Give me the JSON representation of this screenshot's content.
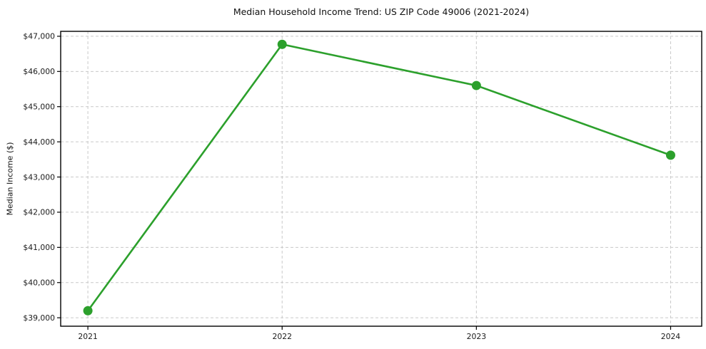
{
  "chart_data": {
    "type": "line",
    "title": "Median Household Income Trend: US ZIP Code 49006 (2021-2024)",
    "xlabel": "",
    "ylabel": "Median Income ($)",
    "x": [
      2021,
      2022,
      2023,
      2024
    ],
    "x_tick_labels": [
      "2021",
      "2022",
      "2023",
      "2024"
    ],
    "series": [
      {
        "name": "Median Household Income",
        "values": [
          39200,
          46770,
          45600,
          43620
        ],
        "color": "#2ca02c",
        "marker": "circle",
        "line_width": 2.6,
        "marker_radius": 6.5
      }
    ],
    "y_ticks": [
      39000,
      40000,
      41000,
      42000,
      43000,
      44000,
      45000,
      46000,
      47000
    ],
    "y_tick_labels": [
      "$39,000",
      "$40,000",
      "$41,000",
      "$42,000",
      "$43,000",
      "$44,000",
      "$45,000",
      "$46,000",
      "$47,000"
    ],
    "xlim": [
      2020.86,
      2024.16
    ],
    "ylim": [
      38760,
      47140
    ],
    "grid": true,
    "grid_style": "dashed",
    "legend_position": "none",
    "colors": {
      "grid": "#c9c9c9",
      "axis": "#000000",
      "text": "#1a1a1a",
      "background": "#ffffff"
    }
  }
}
